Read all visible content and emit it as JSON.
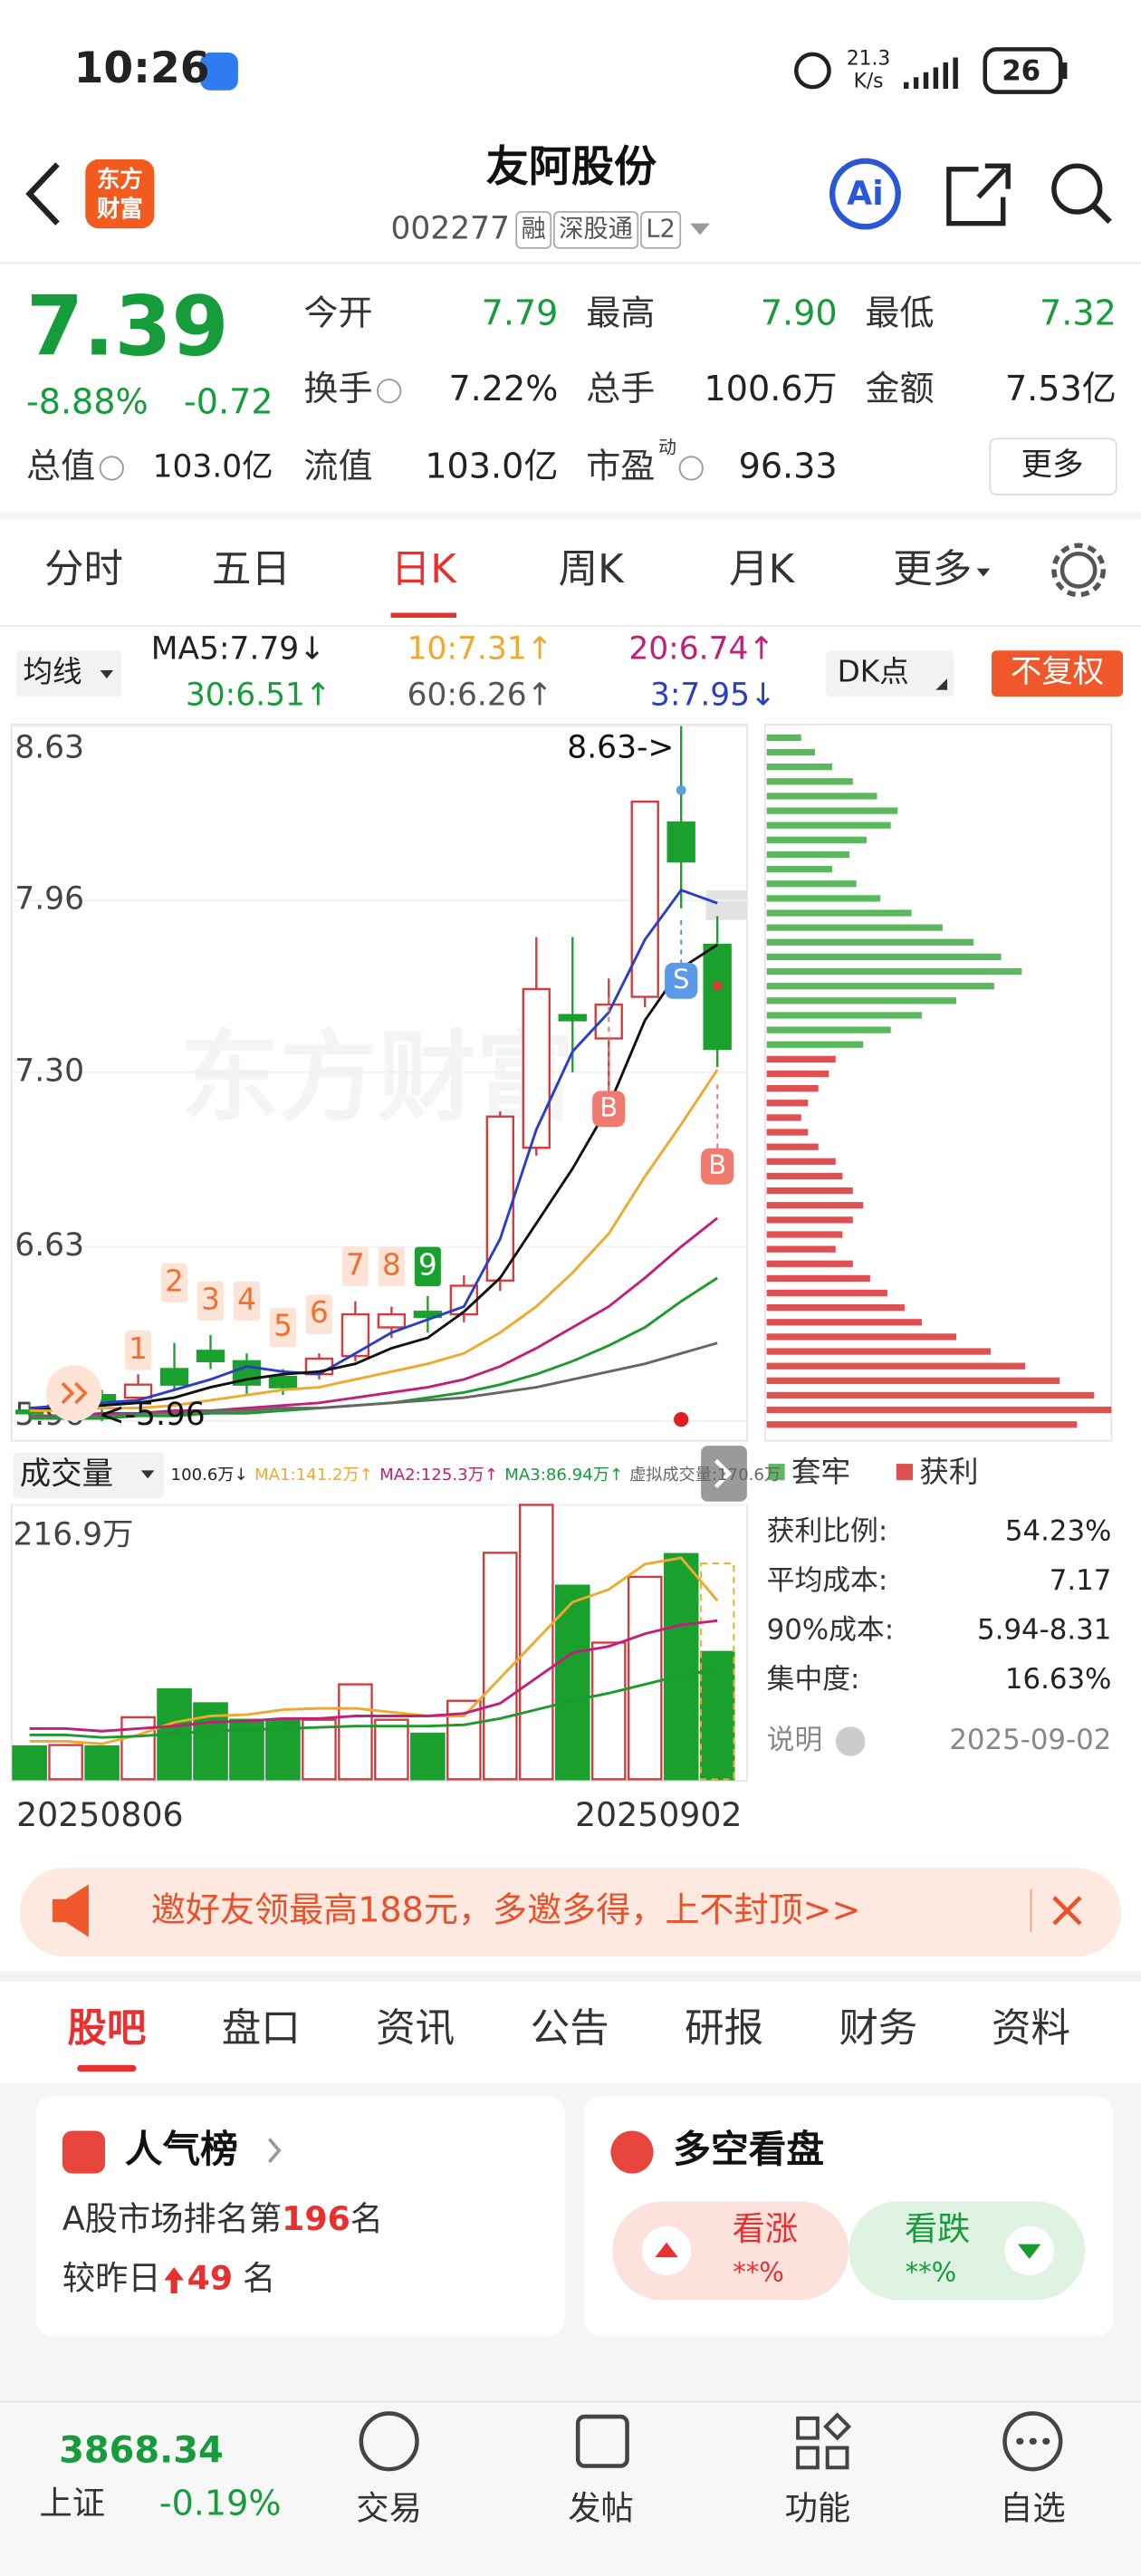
{
  "status_bar": {
    "time": "10:26",
    "speed": "21.3",
    "speed_unit": "K/s",
    "battery": "26"
  },
  "header": {
    "logo": [
      "东方",
      "财富"
    ],
    "title": "友阿股份",
    "code": "002277",
    "tags": [
      "融",
      "深股通",
      "L2"
    ]
  },
  "quote": {
    "price": "7.39",
    "change_pct": "-8.88%",
    "change": "-0.72",
    "total_value_label": "总值",
    "total_value": "103.0亿",
    "fields": [
      [
        "今开",
        "7.79"
      ],
      [
        "最高",
        "7.90"
      ],
      [
        "最低",
        "7.32"
      ],
      [
        "换手",
        "7.22%"
      ],
      [
        "总手",
        "100.6万"
      ],
      [
        "金额",
        "7.53亿"
      ],
      [
        "流值",
        "103.0亿"
      ],
      [
        "市盈",
        "96.33"
      ]
    ],
    "pe_tag": "动",
    "more": "更多"
  },
  "period_tabs": {
    "items": [
      "分时",
      "五日",
      "日K",
      "周K",
      "月K",
      "更多"
    ],
    "active": 2
  },
  "indicators": {
    "ma_button": "均线",
    "labels": [
      "MA5:7.79↓",
      "10:7.31↑",
      "20:6.74↑",
      "30:6.51↑",
      "60:6.26↑",
      "3:7.95↓"
    ],
    "dk": "DK点",
    "adjust": "不复权"
  },
  "kline": {
    "watermark": "东方财富",
    "ylim": [
      5.96,
      8.63
    ],
    "yticks": [
      8.63,
      7.96,
      {
        "value": 7.3,
        "label": "7.30"
      },
      6.63,
      5.96
    ],
    "open": [
      6.0,
      6.02,
      6.06,
      6.05,
      6.16,
      6.23,
      6.19,
      6.13,
      6.14,
      6.21,
      6.32,
      6.38,
      6.37,
      6.5,
      7.01,
      7.52,
      7.43,
      7.59,
      8.26,
      7.79
    ],
    "high": [
      6.03,
      6.06,
      6.08,
      6.14,
      6.26,
      6.29,
      6.22,
      6.16,
      6.22,
      6.42,
      6.4,
      6.44,
      6.52,
      7.15,
      7.82,
      7.82,
      7.66,
      8.34,
      8.63,
      7.9
    ],
    "low": [
      5.98,
      5.99,
      5.96,
      6.03,
      6.08,
      6.16,
      6.06,
      6.06,
      6.12,
      6.19,
      6.28,
      6.3,
      6.34,
      6.46,
      6.98,
      7.3,
      7.22,
      7.55,
      7.93,
      7.32
    ],
    "close": [
      5.99,
      6.05,
      6.04,
      6.1,
      6.1,
      6.19,
      6.1,
      6.09,
      6.2,
      6.37,
      6.37,
      6.36,
      6.48,
      7.13,
      7.62,
      7.5,
      7.56,
      8.34,
      8.11,
      7.39
    ],
    "ma": [
      {
        "color": "#2b3fc4",
        "values": [
          6.01,
          6.02,
          6.03,
          6.04,
          6.08,
          6.12,
          6.17,
          6.15,
          6.14,
          6.22,
          6.3,
          6.35,
          6.4,
          6.66,
          7.08,
          7.38,
          7.53,
          7.81,
          8.0,
          7.95
        ]
      },
      {
        "color": "#111111",
        "values": [
          6.0,
          6.01,
          6.02,
          6.03,
          6.05,
          6.09,
          6.12,
          6.14,
          6.15,
          6.18,
          6.24,
          6.28,
          6.38,
          6.51,
          6.72,
          6.93,
          7.17,
          7.5,
          7.7,
          7.79
        ]
      },
      {
        "color": "#f0a92a",
        "values": [
          6.0,
          6.0,
          6.01,
          6.01,
          6.02,
          6.04,
          6.06,
          6.08,
          6.09,
          6.12,
          6.15,
          6.18,
          6.22,
          6.3,
          6.4,
          6.53,
          6.68,
          6.9,
          7.1,
          7.31
        ]
      },
      {
        "color": "#c0207a",
        "values": [
          5.98,
          5.98,
          5.99,
          5.99,
          6.0,
          6.0,
          6.01,
          6.02,
          6.03,
          6.05,
          6.07,
          6.09,
          6.12,
          6.17,
          6.24,
          6.32,
          6.4,
          6.51,
          6.63,
          6.74
        ]
      },
      {
        "color": "#1d9a2e",
        "values": [
          5.97,
          5.97,
          5.97,
          5.98,
          5.98,
          5.99,
          5.99,
          6.0,
          6.01,
          6.02,
          6.03,
          6.05,
          6.07,
          6.1,
          6.14,
          6.19,
          6.25,
          6.32,
          6.42,
          6.51
        ]
      },
      {
        "color": "#666666",
        "values": [
          5.98,
          5.98,
          5.98,
          5.99,
          5.99,
          6.0,
          6.0,
          6.01,
          6.01,
          6.02,
          6.03,
          6.04,
          6.05,
          6.07,
          6.09,
          6.12,
          6.15,
          6.18,
          6.22,
          6.26
        ]
      }
    ],
    "high_label": "8.63->",
    "low_label": "<-5.96",
    "signals": [
      "1",
      "2",
      "3",
      "4",
      "5",
      "6",
      "7",
      "8",
      "9"
    ],
    "trade_marks": [
      "B",
      "S",
      "B"
    ]
  },
  "volume": {
    "label": "成交量",
    "legend": [
      "100.6万↓",
      "MA1:141.2万↑",
      "MA2:125.3万↑",
      "MA3:86.94万↑",
      "虚拟成交量:170.6万"
    ],
    "ylim": [
      0,
      216.9
    ],
    "yticks": [
      {
        "value": 216.9,
        "label": "216.9万"
      }
    ],
    "values": [
      26,
      27,
      26,
      49,
      71,
      60,
      47,
      47,
      47,
      75,
      47,
      36,
      62,
      179,
      216.9,
      153,
      108,
      160,
      178,
      100.6
    ],
    "virtual": 170.6,
    "ma": [
      {
        "color": "#f0a92a",
        "values": [
          30,
          30,
          28,
          35,
          45,
          50,
          51,
          55,
          56,
          56,
          53,
          50,
          50,
          80,
          110,
          140,
          150,
          170,
          175,
          141.2
        ]
      },
      {
        "color": "#c0207a",
        "values": [
          40,
          40,
          38,
          40,
          42,
          45,
          46,
          48,
          48,
          50,
          50,
          50,
          52,
          60,
          80,
          100,
          105,
          115,
          122,
          125.3
        ]
      },
      {
        "color": "#1d9a2e",
        "values": [
          35,
          35,
          33,
          34,
          36,
          38,
          39,
          40,
          41,
          42,
          42,
          42,
          43,
          48,
          55,
          62,
          68,
          75,
          82,
          86.94
        ]
      }
    ],
    "dates": [
      "20250806",
      "20250902"
    ]
  },
  "chips": {
    "legend": [
      "套牢",
      "获利"
    ],
    "trapped": [
      10,
      14,
      19,
      25,
      32,
      38,
      36,
      29,
      24,
      19,
      26,
      33,
      42,
      51,
      60,
      68,
      74,
      66,
      55,
      45,
      36,
      28
    ],
    "profit": [
      20,
      18,
      15,
      12,
      10,
      12,
      15,
      20,
      22,
      25,
      28,
      25,
      22,
      20,
      25,
      30,
      35,
      40,
      45,
      55,
      65,
      75,
      85,
      95,
      100,
      90
    ],
    "stats": [
      [
        "获利比例:",
        "54.23%"
      ],
      [
        "平均成本:",
        "7.17"
      ],
      [
        "90%成本:",
        "5.94-8.31"
      ],
      [
        "集中度:",
        "16.63%"
      ]
    ],
    "note": "说明",
    "date": "2025-09-02"
  },
  "banner": "邀好友领最高188元，多邀多得，上不封顶>>",
  "content_tabs": {
    "items": [
      "股吧",
      "盘口",
      "资讯",
      "公告",
      "研报",
      "财务",
      "资料"
    ],
    "active": 0
  },
  "cards": {
    "popularity": {
      "title": "人气榜",
      "rank_prefix": "A股市场排名第",
      "rank": "196",
      "rank_suffix": "名",
      "change_prefix": "较昨日",
      "change": "49",
      "change_suffix": "名"
    },
    "sentiment": {
      "title": "多空看盘",
      "up": "看涨",
      "up_pct": "**%",
      "down": "看跌",
      "down_pct": "**%"
    }
  },
  "bottom_nav": {
    "index_value": "3868.34",
    "index_name": "上证",
    "index_change": "-0.19%",
    "items": [
      "交易",
      "发帖",
      "功能",
      "自选"
    ]
  }
}
